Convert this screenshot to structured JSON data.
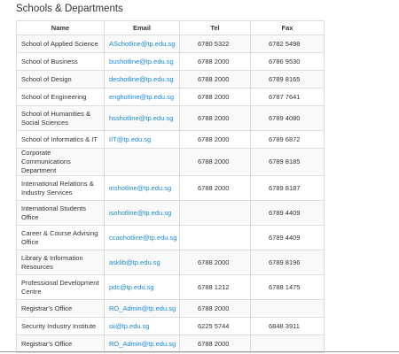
{
  "title": "Schools & Departments",
  "table": {
    "headers": [
      "Name",
      "Email",
      "Tel",
      "Fax"
    ],
    "rows": [
      [
        "School of Applied Science",
        "ASchotline@tp.edu.sg",
        "6780 5322",
        "6782 5498"
      ],
      [
        "School of Business",
        "bushotline@tp.edu.sg",
        "6788 2000",
        "6786 9530"
      ],
      [
        "School of Design",
        "deshotline@tp.edu.sg",
        "6788 2000",
        "6789 8165"
      ],
      [
        "School of Engineering",
        "enghotline@tp.edu.sg",
        "6788 2000",
        "6787 7641"
      ],
      [
        "School of Humanities & Social Sciences",
        "hsshotline@tp.edu.sg",
        "6788 2000",
        "6789 4080"
      ],
      [
        "School of Informatics & IT",
        "IIT@tp.edu.sg",
        "6788 2000",
        "6789 6872"
      ],
      [
        "Corporate Communications Department",
        null,
        "6788 2000",
        "6789 8185"
      ],
      [
        "International Relations & Industry Services",
        "irishotline@tp.edu.sg",
        "6788 2000",
        "6789 8187"
      ],
      [
        "International Students Office",
        "isohotline@tp.edu.sg",
        null,
        "6789 4409"
      ],
      [
        "Career & Course Advising Office",
        "ccaohotline@tp.edu.sg",
        null,
        "6789 4409"
      ],
      [
        "Library & Information Resources",
        "asklib@tp.edu.sg",
        "6788 2000",
        "6789 8196"
      ],
      [
        "Professional Development Centre",
        "pdc@tp.edu.sg",
        "6788 1212",
        "6788 1475"
      ],
      [
        "Registrar's Office",
        "RO_Admin@tp.edu.sg",
        "6788 2000",
        null
      ],
      [
        "Security Industry Institute",
        "sii@tp.edu.sg",
        "6225 5744",
        "6848 3911"
      ],
      [
        "Registrar's Office",
        "RO_Admin@tp.edu.sg",
        "6788 2000",
        null
      ]
    ]
  }
}
